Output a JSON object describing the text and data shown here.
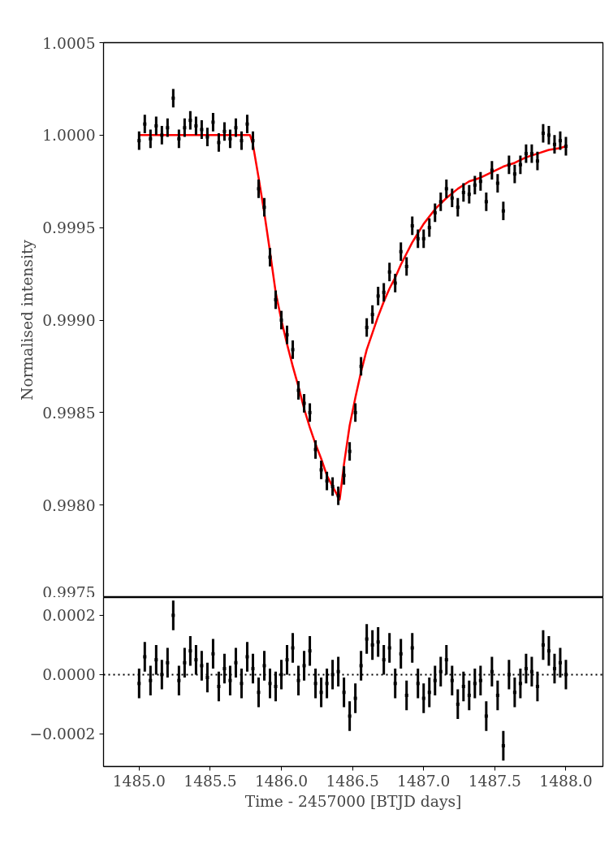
{
  "chart_data": [
    {
      "type": "scatter",
      "ylabel": "Normalised intensity",
      "xlim": [
        1484.75,
        1488.26
      ],
      "ylim": [
        0.9975,
        1.0005
      ],
      "yticks": [
        {
          "value": 0.9975,
          "label": "0.9975"
        },
        {
          "value": 0.998,
          "label": "0.9980"
        },
        {
          "value": 0.9985,
          "label": "0.9985"
        },
        {
          "value": 0.999,
          "label": "0.9990"
        },
        {
          "value": 0.9995,
          "label": "0.9995"
        },
        {
          "value": 1.0,
          "label": "1.0000"
        },
        {
          "value": 1.0005,
          "label": "1.0005"
        }
      ],
      "xticks": [
        {
          "value": 1485.0,
          "label": null
        },
        {
          "value": 1485.5,
          "label": null
        },
        {
          "value": 1486.0,
          "label": null
        },
        {
          "value": 1486.5,
          "label": null
        },
        {
          "value": 1487.0,
          "label": null
        },
        {
          "value": 1487.5,
          "label": null
        },
        {
          "value": 1488.0,
          "label": null
        }
      ],
      "tick_labels": "y",
      "grid": false,
      "x": [
        1485.0,
        1485.04,
        1485.08,
        1485.12,
        1485.16,
        1485.2,
        1485.24,
        1485.28,
        1485.32,
        1485.36,
        1485.4,
        1485.44,
        1485.48,
        1485.52,
        1485.56,
        1485.6,
        1485.64,
        1485.68,
        1485.72,
        1485.76,
        1485.8,
        1485.84,
        1485.88,
        1485.92,
        1485.96,
        1486.0,
        1486.04,
        1486.08,
        1486.12,
        1486.16,
        1486.2,
        1486.24,
        1486.28,
        1486.32,
        1486.36,
        1486.4,
        1486.44,
        1486.48,
        1486.52,
        1486.56,
        1486.6,
        1486.64,
        1486.68,
        1486.72,
        1486.76,
        1486.8,
        1486.84,
        1486.88,
        1486.92,
        1486.96,
        1487.0,
        1487.04,
        1487.08,
        1487.12,
        1487.16,
        1487.2,
        1487.24,
        1487.28,
        1487.32,
        1487.36,
        1487.4,
        1487.44,
        1487.48,
        1487.52,
        1487.56,
        1487.6,
        1487.64,
        1487.68,
        1487.72,
        1487.76,
        1487.8,
        1487.84,
        1487.88,
        1487.92,
        1487.96,
        1488.0
      ],
      "series": [
        {
          "marker": "square",
          "color": "#000000",
          "values": [
            0.99997,
            1.00006,
            0.99998,
            1.00005,
            1.0,
            1.00004,
            1.0002,
            0.99998,
            1.00004,
            1.00008,
            1.00005,
            1.00003,
            0.99999,
            1.00007,
            0.99996,
            1.00002,
            0.99998,
            1.00004,
            0.99997,
            1.00006,
            0.99997,
            0.99971,
            0.99961,
            0.99934,
            0.99911,
            0.999,
            0.99892,
            0.99884,
            0.99862,
            0.99855,
            0.9985,
            0.9983,
            0.99819,
            0.99813,
            0.9981,
            0.99805,
            0.99816,
            0.99829,
            0.9985,
            0.99875,
            0.99896,
            0.99903,
            0.99913,
            0.99915,
            0.99926,
            0.9992,
            0.99937,
            0.99929,
            0.99951,
            0.99944,
            0.99944,
            0.9995,
            0.99958,
            0.99964,
            0.99971,
            0.99966,
            0.99961,
            0.99969,
            0.99968,
            0.99973,
            0.99975,
            0.99964,
            0.99981,
            0.99974,
            0.99959,
            0.99984,
            0.99979,
            0.99984,
            0.9999,
            0.9999,
            0.99986,
            1.00001,
            1.0,
            0.99995,
            0.99997,
            0.99994
          ],
          "errors": [
            5e-05,
            5e-05,
            5e-05,
            5e-05,
            5e-05,
            5e-05,
            5e-05,
            5e-05,
            5e-05,
            5e-05,
            5e-05,
            5e-05,
            5e-05,
            5e-05,
            5e-05,
            5e-05,
            5e-05,
            5e-05,
            5e-05,
            5e-05,
            5e-05,
            5e-05,
            5e-05,
            5e-05,
            5e-05,
            5e-05,
            5e-05,
            5e-05,
            5e-05,
            5e-05,
            5e-05,
            5e-05,
            5e-05,
            5e-05,
            5e-05,
            5e-05,
            5e-05,
            5e-05,
            5e-05,
            5e-05,
            5e-05,
            5e-05,
            5e-05,
            5e-05,
            5e-05,
            5e-05,
            5e-05,
            5e-05,
            5e-05,
            5e-05,
            5e-05,
            5e-05,
            5e-05,
            5e-05,
            5e-05,
            5e-05,
            5e-05,
            5e-05,
            5e-05,
            5e-05,
            5e-05,
            5e-05,
            5e-05,
            5e-05,
            5e-05,
            5e-05,
            5e-05,
            5e-05,
            5e-05,
            5e-05,
            5e-05,
            5e-05,
            5e-05,
            5e-05,
            5e-05,
            5e-05
          ]
        },
        {
          "type": "line",
          "line_style": "solid",
          "color": "#ff0000",
          "x": [
            1485.0,
            1485.78,
            1485.8,
            1485.84,
            1485.88,
            1485.92,
            1485.96,
            1486.0,
            1486.04,
            1486.08,
            1486.12,
            1486.16,
            1486.2,
            1486.24,
            1486.28,
            1486.32,
            1486.36,
            1486.41,
            1486.44,
            1486.48,
            1486.52,
            1486.56,
            1486.6,
            1486.64,
            1486.68,
            1486.72,
            1486.76,
            1486.8,
            1486.84,
            1486.88,
            1486.92,
            1486.96,
            1487.0,
            1487.08,
            1487.16,
            1487.24,
            1487.32,
            1487.4,
            1487.48,
            1487.56,
            1487.64,
            1487.72,
            1487.8,
            1487.88,
            1487.96,
            1488.0
          ],
          "values": [
            1.0,
            1.0,
            0.99995,
            0.99977,
            0.99958,
            0.99937,
            0.99915,
            0.999,
            0.99887,
            0.99875,
            0.99864,
            0.99852,
            0.99842,
            0.99833,
            0.99825,
            0.99816,
            0.9981,
            0.99803,
            0.99822,
            0.99843,
            0.99858,
            0.99872,
            0.99884,
            0.99893,
            0.99902,
            0.9991,
            0.99917,
            0.99923,
            0.9993,
            0.99936,
            0.99942,
            0.99947,
            0.99952,
            0.9996,
            0.99966,
            0.99971,
            0.99975,
            0.99977,
            0.9998,
            0.99983,
            0.99985,
            0.99988,
            0.9999,
            0.99992,
            0.99993,
            0.99994
          ]
        }
      ]
    },
    {
      "type": "scatter",
      "xlabel": "Time - 2457000 [BTJD days]",
      "xlim": [
        1484.75,
        1488.26
      ],
      "ylim": [
        -0.00031,
        0.00026
      ],
      "xticks": [
        {
          "value": 1485.0,
          "label": "1485.0"
        },
        {
          "value": 1485.5,
          "label": "1485.5"
        },
        {
          "value": 1486.0,
          "label": "1486.0"
        },
        {
          "value": 1486.5,
          "label": "1486.5"
        },
        {
          "value": 1487.0,
          "label": "1487.0"
        },
        {
          "value": 1487.5,
          "label": "1487.5"
        },
        {
          "value": 1488.0,
          "label": "1488.0"
        }
      ],
      "yticks": [
        {
          "value": -0.0002,
          "label": "−0.0002"
        },
        {
          "value": 0.0,
          "label": "0.0000"
        },
        {
          "value": 0.0002,
          "label": "0.0002"
        }
      ],
      "grid": false,
      "ref_lines": [
        {
          "axis": "y",
          "value": 0.0,
          "color": "#000000",
          "line_style": "dotted"
        }
      ],
      "x": [
        1485.0,
        1485.04,
        1485.08,
        1485.12,
        1485.16,
        1485.2,
        1485.24,
        1485.28,
        1485.32,
        1485.36,
        1485.4,
        1485.44,
        1485.48,
        1485.52,
        1485.56,
        1485.6,
        1485.64,
        1485.68,
        1485.72,
        1485.76,
        1485.8,
        1485.84,
        1485.88,
        1485.92,
        1485.96,
        1486.0,
        1486.04,
        1486.08,
        1486.12,
        1486.16,
        1486.2,
        1486.24,
        1486.28,
        1486.32,
        1486.36,
        1486.4,
        1486.44,
        1486.48,
        1486.52,
        1486.56,
        1486.6,
        1486.64,
        1486.68,
        1486.72,
        1486.76,
        1486.8,
        1486.84,
        1486.88,
        1486.92,
        1486.96,
        1487.0,
        1487.04,
        1487.08,
        1487.12,
        1487.16,
        1487.2,
        1487.24,
        1487.28,
        1487.32,
        1487.36,
        1487.4,
        1487.44,
        1487.48,
        1487.52,
        1487.56,
        1487.6,
        1487.64,
        1487.68,
        1487.72,
        1487.76,
        1487.8,
        1487.84,
        1487.88,
        1487.92,
        1487.96,
        1488.0
      ],
      "series": [
        {
          "marker": "square",
          "color": "#000000",
          "values": [
            -3e-05,
            6e-05,
            -2e-05,
            5e-05,
            0.0,
            4e-05,
            0.0002,
            -2e-05,
            4e-05,
            8e-05,
            5e-05,
            3e-05,
            -1e-05,
            7e-05,
            -4e-05,
            2e-05,
            -2e-05,
            4e-05,
            -3e-05,
            6e-05,
            2e-05,
            -6e-05,
            3e-05,
            -3e-05,
            -4e-05,
            0.0,
            5e-05,
            9e-05,
            -2e-05,
            3e-05,
            8e-05,
            -3e-05,
            -6e-05,
            -3e-05,
            0.0,
            1e-05,
            -6e-05,
            -0.00014,
            -8e-05,
            3e-05,
            0.00012,
            0.0001,
            0.00011,
            5e-05,
            9e-05,
            -3e-05,
            7e-05,
            -7e-05,
            9e-05,
            -3e-05,
            -8e-05,
            -6e-05,
            -2e-05,
            1e-05,
            5e-05,
            -2e-05,
            -0.0001,
            -4e-05,
            -7e-05,
            -3e-05,
            -2e-05,
            -0.00014,
            1e-05,
            -7e-05,
            -0.00024,
            0.0,
            -6e-05,
            -3e-05,
            2e-05,
            1e-05,
            -4e-05,
            0.0001,
            8e-05,
            2e-05,
            4e-05,
            0.0
          ],
          "errors": [
            5e-05,
            5e-05,
            5e-05,
            5e-05,
            5e-05,
            5e-05,
            5e-05,
            5e-05,
            5e-05,
            5e-05,
            5e-05,
            5e-05,
            5e-05,
            5e-05,
            5e-05,
            5e-05,
            5e-05,
            5e-05,
            5e-05,
            5e-05,
            5e-05,
            5e-05,
            5e-05,
            5e-05,
            5e-05,
            5e-05,
            5e-05,
            5e-05,
            5e-05,
            5e-05,
            5e-05,
            5e-05,
            5e-05,
            5e-05,
            5e-05,
            5e-05,
            5e-05,
            5e-05,
            5e-05,
            5e-05,
            5e-05,
            5e-05,
            5e-05,
            5e-05,
            5e-05,
            5e-05,
            5e-05,
            5e-05,
            5e-05,
            5e-05,
            5e-05,
            5e-05,
            5e-05,
            5e-05,
            5e-05,
            5e-05,
            5e-05,
            5e-05,
            5e-05,
            5e-05,
            5e-05,
            5e-05,
            5e-05,
            5e-05,
            5e-05,
            5e-05,
            5e-05,
            5e-05,
            5e-05,
            5e-05,
            5e-05,
            5e-05,
            5e-05,
            5e-05,
            5e-05,
            5e-05
          ]
        }
      ]
    }
  ]
}
